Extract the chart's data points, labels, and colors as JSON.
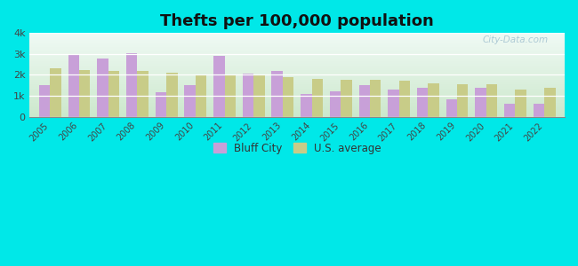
{
  "years": [
    2005,
    2006,
    2007,
    2008,
    2009,
    2010,
    2011,
    2012,
    2013,
    2014,
    2015,
    2016,
    2017,
    2018,
    2019,
    2020,
    2021,
    2022
  ],
  "bluff_city": [
    1500,
    3000,
    2800,
    3050,
    1150,
    1500,
    2900,
    2050,
    2200,
    1100,
    1200,
    1500,
    1300,
    1400,
    850,
    1400,
    600,
    600
  ],
  "us_average": [
    2300,
    2250,
    2200,
    2200,
    2100,
    2000,
    1980,
    1980,
    1900,
    1800,
    1750,
    1750,
    1720,
    1600,
    1550,
    1550,
    1300,
    1380
  ],
  "bluff_city_color": "#c8a0d8",
  "us_average_color": "#c8cc88",
  "title": "Thefts per 100,000 population",
  "title_fontsize": 13,
  "ylim": [
    0,
    4000
  ],
  "yticks": [
    0,
    1000,
    2000,
    3000,
    4000
  ],
  "ytick_labels": [
    "0",
    "1k",
    "2k",
    "3k",
    "4k"
  ],
  "outer_bg": "#00e8e8",
  "legend_labels": [
    "Bluff City",
    "U.S. average"
  ],
  "bar_width": 0.38,
  "watermark": "City-Data.com"
}
